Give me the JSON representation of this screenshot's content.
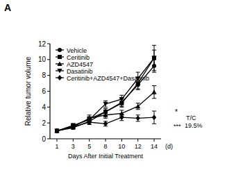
{
  "chart_data": {
    "type": "line",
    "panel_label": "A",
    "x_label": "Days After Initial Treatment",
    "x_unit": "(d)",
    "y_label": "Relative tumor volume",
    "categories": [
      "1",
      "3",
      "5",
      "8",
      "10",
      "12",
      "14"
    ],
    "ylim": [
      0,
      12
    ],
    "yticks": [
      0,
      2,
      4,
      6,
      8,
      10,
      12
    ],
    "legend": "top-left",
    "series": [
      {
        "name": "Vehicle",
        "color": "#000000",
        "marker": "circle",
        "values": [
          1,
          1.4,
          2.2,
          3.4,
          4.6,
          6.8,
          9.2
        ],
        "errors": [
          0,
          0.2,
          0.3,
          0.4,
          0.5,
          0.6,
          0.8
        ]
      },
      {
        "name": "Ceritinib",
        "color": "#000000",
        "marker": "square",
        "values": [
          1,
          1.6,
          2.5,
          3.4,
          4.5,
          7.0,
          10.2
        ],
        "errors": [
          0,
          0.2,
          0.3,
          0.4,
          0.5,
          0.7,
          1.6
        ]
      },
      {
        "name": "AZD4547",
        "color": "#000000",
        "marker": "triangle",
        "values": [
          1,
          1.5,
          2.6,
          3.0,
          3.2,
          4.1,
          5.9
        ],
        "errors": [
          0,
          0.2,
          0.4,
          0.4,
          0.4,
          0.4,
          0.8
        ]
      },
      {
        "name": "Dasatinib",
        "color": "#000000",
        "marker": "triangle-down",
        "values": [
          1,
          1.7,
          2.4,
          4.4,
          5.0,
          7.6,
          10.2
        ],
        "errors": [
          0,
          0.2,
          0.3,
          0.4,
          0.5,
          0.8,
          1.0
        ]
      },
      {
        "name": "Ceritinib+AZD4547+Dasatinib",
        "color": "#000000",
        "marker": "diamond",
        "values": [
          1,
          1.5,
          2.1,
          1.9,
          2.7,
          2.6,
          2.7
        ],
        "errors": [
          0,
          0.2,
          0.3,
          0.3,
          0.4,
          0.4,
          0.8
        ]
      }
    ],
    "annotations": [
      "*",
      "T/C",
      "***",
      "19.5%"
    ]
  }
}
